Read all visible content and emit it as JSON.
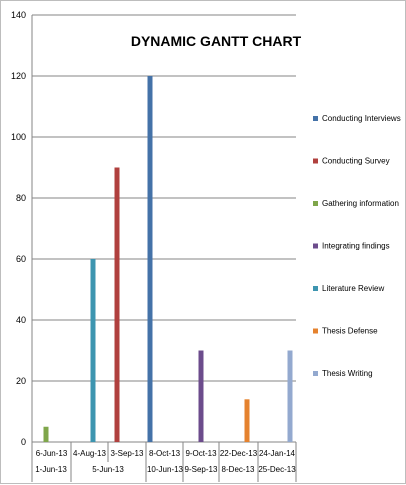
{
  "chart_data": {
    "type": "bar",
    "title": "DYNAMIC GANTT CHART",
    "xlabel": "",
    "ylabel": "",
    "ylim": [
      0,
      140
    ],
    "ystep": 20,
    "grid": true,
    "legend_position": "right",
    "x_tick_rows": [
      [
        "6-Jun-13",
        "4-Aug-13",
        "3-Sep-13",
        "8-Oct-13",
        "9-Oct-13",
        "22-Dec-13",
        "24-Jan-14"
      ],
      [
        "1-Jun-13",
        "5-Jun-13",
        "10-Jun-13",
        "9-Sep-13",
        "8-Dec-13",
        "25-Dec-13"
      ]
    ],
    "series": [
      {
        "name": "Conducting Interviews",
        "color": "#4472a8",
        "value": 120
      },
      {
        "name": "Conducting Survey",
        "color": "#b0403e",
        "value": 90
      },
      {
        "name": "Gathering information",
        "color": "#7fa64a",
        "value": 5
      },
      {
        "name": "Integrating findings",
        "color": "#6c4c8c",
        "value": 30
      },
      {
        "name": "Literature Review",
        "color": "#3d95b0",
        "value": 60
      },
      {
        "name": "Thesis Defense",
        "color": "#e5822e",
        "value": 14
      },
      {
        "name": "Thesis Writing",
        "color": "#93a9cf",
        "value": 30
      }
    ]
  }
}
